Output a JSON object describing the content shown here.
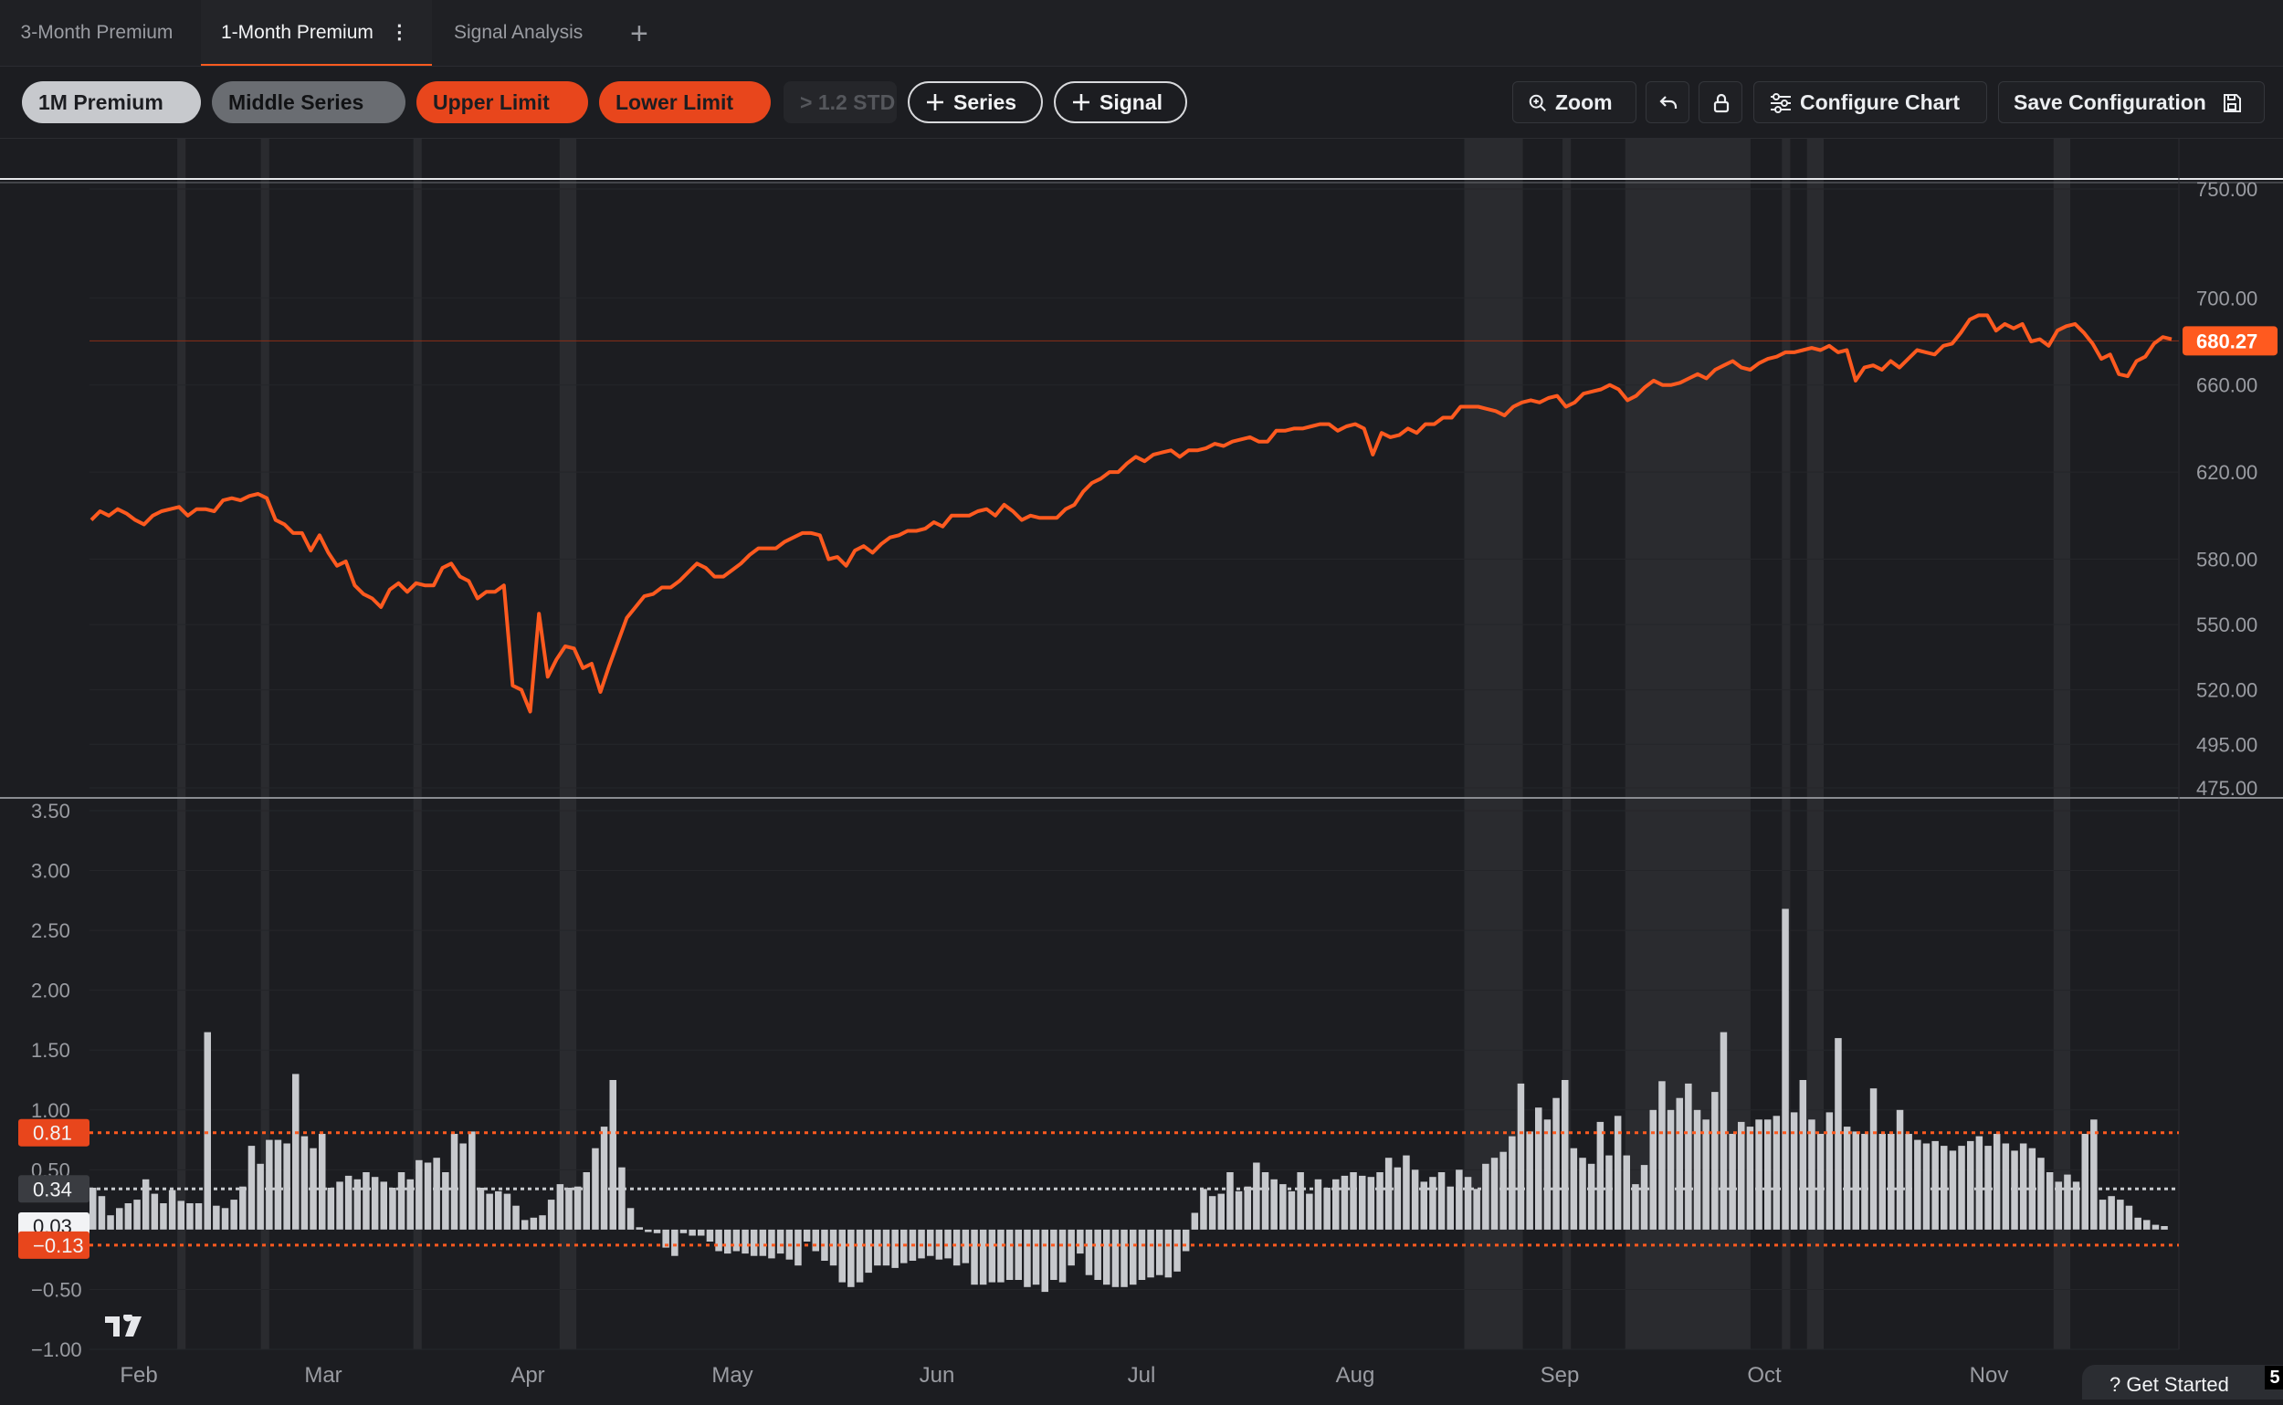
{
  "tabs": [
    {
      "label": "3-Month Premium",
      "active": false
    },
    {
      "label": "1-Month Premium",
      "active": true
    },
    {
      "label": "Signal Analysis",
      "active": false
    }
  ],
  "add_tab_symbol": "+",
  "kebab_symbol": "⋮",
  "series_pills": [
    {
      "label": "1M Premium",
      "bg": "#c7c9cd",
      "fg": "#1c1d21"
    },
    {
      "label": "Middle Series",
      "bg": "#6a6d72",
      "fg": "#111214"
    },
    {
      "label": "Upper Limit",
      "bg": "#e8461c",
      "fg": "#1c1d21"
    },
    {
      "label": "Lower Limit",
      "bg": "#e8461c",
      "fg": "#1c1d21"
    },
    {
      "label": "> 1.2 STD",
      "bg": "#25262a",
      "fg": "#55575c"
    }
  ],
  "add_series_label": "Series",
  "add_signal_label": "Signal",
  "toolbar": {
    "zoom_label": "Zoom",
    "configure_label": "Configure Chart",
    "save_label": "Save Configuration"
  },
  "help": {
    "label": "? Get Started",
    "badge": "5"
  },
  "colors": {
    "accent": "#ff5a1f",
    "bar": "#c7c9cd",
    "background": "#1c1d21"
  },
  "chart_data": [
    {
      "type": "line",
      "series_name": "1M Premium",
      "y_ticks": [
        "750.00",
        "700.00",
        "660.00",
        "620.00",
        "580.00",
        "550.00",
        "520.00",
        "495.00",
        "475.00"
      ],
      "ylim": [
        475,
        750
      ],
      "last_value_label": "680.27",
      "x_labels": [
        "Feb",
        "Mar",
        "Apr",
        "May",
        "Jun",
        "Jul",
        "Aug",
        "Sep",
        "Oct",
        "Nov"
      ],
      "values": [
        598,
        602,
        600,
        603,
        601,
        598,
        596,
        600,
        602,
        603,
        604,
        600,
        603,
        603,
        602,
        607,
        608,
        607,
        609,
        610,
        608,
        598,
        596,
        592,
        592,
        584,
        591,
        583,
        577,
        579,
        568,
        564,
        562,
        558,
        566,
        569,
        565,
        569,
        568,
        568,
        576,
        578,
        572,
        570,
        562,
        565,
        565,
        568,
        522,
        520,
        510,
        555,
        526,
        534,
        540,
        539,
        530,
        532,
        519,
        531,
        542,
        553,
        558,
        563,
        564,
        567,
        567,
        570,
        574,
        578,
        576,
        572,
        572,
        575,
        578,
        582,
        585,
        585,
        585,
        588,
        590,
        592,
        592,
        591,
        580,
        581,
        577,
        584,
        586,
        583,
        587,
        590,
        591,
        593,
        593,
        594,
        597,
        595,
        600,
        600,
        600,
        602,
        603,
        600,
        605,
        602,
        598,
        600,
        599,
        599,
        599,
        603,
        605,
        611,
        615,
        617,
        620,
        620,
        624,
        627,
        625,
        628,
        629,
        630,
        627,
        630,
        630,
        631,
        633,
        632,
        634,
        635,
        636,
        634,
        634,
        639,
        639,
        640,
        640,
        641,
        642,
        642,
        639,
        641,
        642,
        640,
        628,
        638,
        636,
        637,
        640,
        638,
        642,
        642,
        645,
        645,
        650,
        650,
        650,
        649,
        648,
        646,
        650,
        652,
        653,
        652,
        654,
        655,
        650,
        652,
        656,
        657,
        658,
        660,
        658,
        653,
        655,
        659,
        662,
        660,
        660,
        661,
        663,
        665,
        663,
        667,
        669,
        671,
        668,
        667,
        670,
        672,
        673,
        675,
        675,
        676,
        677,
        676,
        678,
        675,
        676,
        662,
        668,
        669,
        667,
        671,
        668,
        672,
        676,
        675,
        674,
        678,
        679,
        684,
        690,
        692,
        692,
        685,
        688,
        686,
        688,
        680,
        681,
        678,
        685,
        687,
        688,
        684,
        679,
        672,
        674,
        665,
        664,
        671,
        673,
        679,
        682,
        681
      ]
    },
    {
      "type": "bar",
      "series_name": "Signal",
      "y_ticks": [
        "3.50",
        "3.00",
        "2.50",
        "2.00",
        "1.50",
        "1.00",
        "0.50",
        "−0.50",
        "−1.00"
      ],
      "ylim": [
        -1.0,
        3.5
      ],
      "reference_lines": [
        {
          "label": "0.81",
          "value": 0.81,
          "style": "upper"
        },
        {
          "label": "0.34",
          "value": 0.34,
          "style": "middle"
        },
        {
          "label": "0.03",
          "value": 0.03,
          "style": "current"
        },
        {
          "label": "−0.13",
          "value": -0.13,
          "style": "lower"
        }
      ],
      "x_labels": [
        "Feb",
        "Mar",
        "Apr",
        "May",
        "Jun",
        "Jul",
        "Aug",
        "Sep",
        "Oct",
        "Nov"
      ],
      "values": [
        0.35,
        0.28,
        0.12,
        0.18,
        0.22,
        0.25,
        0.42,
        0.3,
        0.22,
        0.33,
        0.24,
        0.22,
        0.22,
        1.65,
        0.2,
        0.18,
        0.25,
        0.36,
        0.7,
        0.55,
        0.75,
        0.75,
        0.72,
        1.3,
        0.78,
        0.68,
        0.8,
        0.35,
        0.4,
        0.45,
        0.42,
        0.48,
        0.44,
        0.4,
        0.35,
        0.48,
        0.42,
        0.58,
        0.56,
        0.6,
        0.48,
        0.8,
        0.72,
        0.82,
        0.35,
        0.3,
        0.32,
        0.3,
        0.2,
        0.08,
        0.1,
        0.12,
        0.25,
        0.38,
        0.35,
        0.36,
        0.48,
        0.68,
        0.86,
        1.25,
        0.52,
        0.18,
        0.02,
        -0.02,
        -0.03,
        -0.15,
        -0.22,
        -0.03,
        -0.05,
        -0.05,
        -0.1,
        -0.18,
        -0.2,
        -0.18,
        -0.2,
        -0.22,
        -0.22,
        -0.24,
        -0.2,
        -0.25,
        -0.3,
        -0.1,
        -0.18,
        -0.26,
        -0.3,
        -0.44,
        -0.48,
        -0.44,
        -0.36,
        -0.3,
        -0.3,
        -0.32,
        -0.28,
        -0.26,
        -0.24,
        -0.22,
        -0.25,
        -0.24,
        -0.3,
        -0.28,
        -0.46,
        -0.46,
        -0.44,
        -0.44,
        -0.42,
        -0.42,
        -0.48,
        -0.46,
        -0.52,
        -0.42,
        -0.44,
        -0.3,
        -0.2,
        -0.38,
        -0.42,
        -0.46,
        -0.48,
        -0.48,
        -0.46,
        -0.42,
        -0.4,
        -0.38,
        -0.4,
        -0.35,
        -0.18,
        0.14,
        0.34,
        0.28,
        0.3,
        0.48,
        0.32,
        0.36,
        0.56,
        0.48,
        0.42,
        0.38,
        0.32,
        0.48,
        0.3,
        0.42,
        0.35,
        0.42,
        0.45,
        0.48,
        0.45,
        0.44,
        0.48,
        0.6,
        0.52,
        0.62,
        0.5,
        0.4,
        0.44,
        0.48,
        0.36,
        0.5,
        0.44,
        0.34,
        0.55,
        0.6,
        0.65,
        0.78,
        1.22,
        0.82,
        1.02,
        0.92,
        1.1,
        1.25,
        0.68,
        0.6,
        0.55,
        0.9,
        0.62,
        0.95,
        0.62,
        0.38,
        0.54,
        1.0,
        1.24,
        1.0,
        1.1,
        1.22,
        1.0,
        0.92,
        1.15,
        1.65,
        0.8,
        0.9,
        0.86,
        0.92,
        0.92,
        0.95,
        2.68,
        0.98,
        1.25,
        0.92,
        0.8,
        0.98,
        1.6,
        0.86,
        0.82,
        0.8,
        1.18,
        0.8,
        0.8,
        1.0,
        0.8,
        0.75,
        0.72,
        0.74,
        0.7,
        0.66,
        0.7,
        0.74,
        0.78,
        0.7,
        0.8,
        0.72,
        0.66,
        0.72,
        0.68,
        0.6,
        0.48,
        0.4,
        0.46,
        0.4,
        0.8,
        0.92,
        0.25,
        0.28,
        0.25,
        0.2,
        0.1,
        0.08,
        0.04,
        0.03
      ]
    }
  ]
}
